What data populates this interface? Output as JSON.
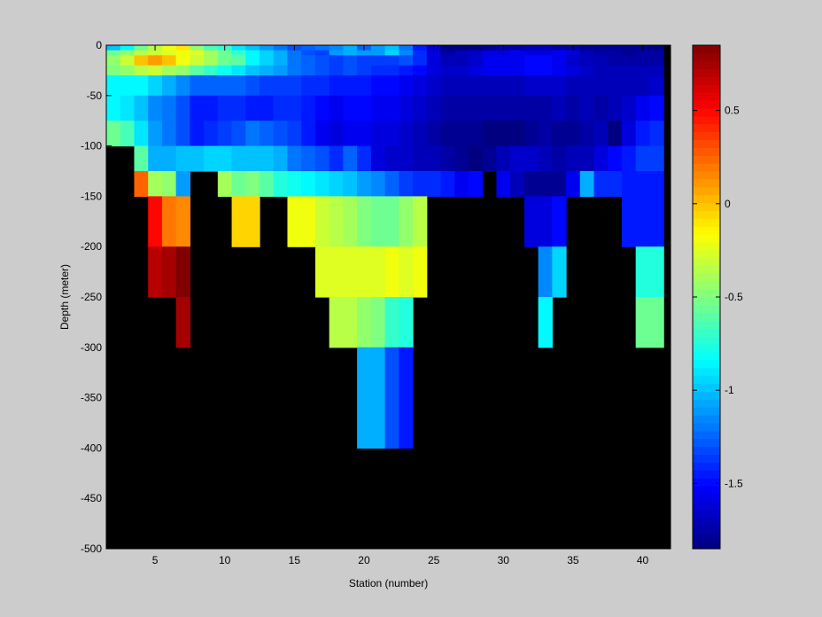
{
  "chart_data": {
    "type": "heatmap",
    "title": "",
    "xlabel": "Station (number)",
    "ylabel": "Depth (meter)",
    "xlim": [
      1.5,
      42
    ],
    "ylim": [
      -500,
      0
    ],
    "xticks": [
      5,
      10,
      15,
      20,
      25,
      30,
      35,
      40
    ],
    "yticks": [
      0,
      -50,
      -100,
      -150,
      -200,
      -250,
      -300,
      -350,
      -400,
      -450,
      -500
    ],
    "colorbar": {
      "colormap": "jet",
      "clim": [
        -1.85,
        0.85
      ],
      "ticks": [
        0.5,
        0,
        -0.5,
        -1,
        -1.5
      ]
    },
    "background_color": "#000000",
    "stations": [
      2,
      3,
      4,
      5,
      6,
      7,
      8,
      9,
      10,
      11,
      12,
      13,
      14,
      15,
      16,
      17,
      18,
      19,
      20,
      21,
      22,
      23,
      24,
      25,
      26,
      27,
      28,
      29,
      30,
      31,
      32,
      33,
      34,
      35,
      36,
      37,
      38,
      39,
      40,
      41
    ],
    "depth_boundaries": [
      -5,
      -10,
      -20,
      -30,
      -50,
      -75,
      -100,
      -125,
      -150,
      -200,
      -250,
      -300,
      -400,
      -500
    ],
    "values": [
      [
        -1.0,
        -0.85,
        -0.55,
        -0.35,
        -0.2,
        -0.1,
        -0.45,
        -0.65,
        -0.7,
        -0.9,
        -1.0,
        -1.1,
        -1.2,
        -1.3,
        -1.25,
        -1.2,
        -1.15,
        -1.05,
        -1.25,
        -1.1,
        -1.0,
        -1.2,
        -1.45,
        -1.65,
        -1.85,
        -1.85,
        -1.85,
        -1.8,
        -1.75,
        -1.75,
        -1.7,
        -1.7,
        -1.75,
        -1.75,
        -1.8,
        -1.8,
        -1.8,
        -1.8,
        -1.8,
        -1.85
      ],
      [
        -0.55,
        -0.45,
        -0.35,
        -0.3,
        -0.25,
        -0.2,
        -0.25,
        -0.4,
        -0.55,
        -0.7,
        -0.85,
        -0.95,
        -1.05,
        -1.2,
        -1.3,
        -1.35,
        -1.1,
        -1.05,
        -1.1,
        -1.1,
        -0.95,
        -1.15,
        -1.4,
        -1.6,
        -1.75,
        -1.7,
        -1.65,
        -1.6,
        -1.6,
        -1.55,
        -1.6,
        -1.6,
        -1.55,
        -1.6,
        -1.7,
        -1.75,
        -1.75,
        -1.8,
        -1.75,
        -1.75
      ],
      [
        -0.45,
        -0.3,
        0.0,
        0.1,
        0.0,
        -0.2,
        -0.3,
        -0.4,
        -0.55,
        -0.6,
        -0.85,
        -0.95,
        -1.05,
        -1.2,
        -1.25,
        -1.3,
        -1.35,
        -1.3,
        -1.35,
        -1.35,
        -1.35,
        -1.3,
        -1.4,
        -1.6,
        -1.7,
        -1.7,
        -1.65,
        -1.55,
        -1.55,
        -1.55,
        -1.5,
        -1.5,
        -1.55,
        -1.65,
        -1.7,
        -1.7,
        -1.75,
        -1.75,
        -1.75,
        -1.75
      ],
      [
        -0.5,
        -0.45,
        -0.35,
        -0.3,
        -0.4,
        -0.45,
        -0.6,
        -0.7,
        -0.8,
        -0.9,
        -1.0,
        -1.05,
        -1.1,
        -1.2,
        -1.25,
        -1.3,
        -1.35,
        -1.3,
        -1.35,
        -1.4,
        -1.4,
        -1.45,
        -1.5,
        -1.6,
        -1.65,
        -1.65,
        -1.6,
        -1.55,
        -1.55,
        -1.55,
        -1.5,
        -1.5,
        -1.55,
        -1.6,
        -1.65,
        -1.7,
        -1.7,
        -1.7,
        -1.7,
        -1.7
      ],
      [
        -0.85,
        -0.85,
        -0.85,
        -0.95,
        -1.05,
        -1.15,
        -1.25,
        -1.25,
        -1.25,
        -1.25,
        -1.3,
        -1.35,
        -1.35,
        -1.35,
        -1.4,
        -1.4,
        -1.45,
        -1.45,
        -1.45,
        -1.5,
        -1.5,
        -1.55,
        -1.6,
        -1.65,
        -1.7,
        -1.7,
        -1.7,
        -1.7,
        -1.7,
        -1.7,
        -1.65,
        -1.65,
        -1.65,
        -1.7,
        -1.7,
        -1.7,
        -1.7,
        -1.7,
        -1.7,
        -1.65
      ],
      [
        -0.85,
        -0.9,
        -1.0,
        -1.15,
        -1.2,
        -1.3,
        -1.45,
        -1.45,
        -1.4,
        -1.4,
        -1.45,
        -1.45,
        -1.4,
        -1.4,
        -1.45,
        -1.5,
        -1.55,
        -1.5,
        -1.5,
        -1.55,
        -1.55,
        -1.6,
        -1.65,
        -1.7,
        -1.75,
        -1.75,
        -1.75,
        -1.75,
        -1.75,
        -1.75,
        -1.75,
        -1.75,
        -1.7,
        -1.75,
        -1.7,
        -1.75,
        -1.7,
        -1.65,
        -1.55,
        -1.5
      ],
      [
        -0.55,
        -0.65,
        -0.9,
        -1.1,
        -1.2,
        -1.3,
        -1.45,
        -1.4,
        -1.35,
        -1.3,
        -1.2,
        -1.25,
        -1.3,
        -1.35,
        -1.45,
        -1.55,
        -1.6,
        -1.55,
        -1.55,
        -1.6,
        -1.6,
        -1.65,
        -1.7,
        -1.75,
        -1.8,
        -1.8,
        -1.8,
        -1.85,
        -1.85,
        -1.85,
        -1.8,
        -1.75,
        -1.8,
        -1.8,
        -1.75,
        -1.7,
        -1.85,
        -1.6,
        -1.45,
        -1.4
      ],
      [
        null,
        null,
        -0.6,
        -1.05,
        -1.05,
        -1.0,
        -1.0,
        -0.95,
        -0.95,
        -1.0,
        -1.0,
        -1.0,
        -1.05,
        -1.2,
        -1.25,
        -1.3,
        -1.4,
        -1.25,
        -1.4,
        -1.6,
        -1.65,
        -1.65,
        -1.7,
        -1.7,
        -1.75,
        -1.8,
        -1.85,
        -1.8,
        -1.7,
        -1.65,
        -1.65,
        -1.7,
        -1.75,
        -1.7,
        -1.7,
        -1.6,
        -1.5,
        -1.45,
        -1.35,
        -1.35
      ],
      [
        null,
        null,
        0.25,
        -0.4,
        -0.45,
        -1.1,
        null,
        null,
        -0.4,
        -0.55,
        -0.5,
        -0.6,
        -0.75,
        -0.8,
        -0.85,
        -0.9,
        -0.95,
        -1.0,
        -1.1,
        -1.15,
        -1.25,
        -1.35,
        -1.4,
        -1.4,
        -1.45,
        -1.55,
        -1.5,
        null,
        -1.55,
        -1.7,
        -1.8,
        -1.8,
        -1.8,
        -1.55,
        -1.05,
        -1.4,
        -1.4,
        -1.45,
        -1.45,
        -1.45
      ],
      [
        null,
        null,
        null,
        0.5,
        0.2,
        0.15,
        null,
        null,
        null,
        -0.05,
        -0.05,
        null,
        null,
        -0.2,
        -0.2,
        -0.3,
        -0.35,
        -0.4,
        -0.5,
        -0.55,
        -0.55,
        -0.45,
        -0.35,
        null,
        null,
        null,
        null,
        null,
        null,
        null,
        -1.6,
        -1.6,
        -1.5,
        null,
        null,
        null,
        null,
        -1.45,
        -1.45,
        -1.45
      ],
      [
        null,
        null,
        null,
        0.7,
        0.75,
        0.85,
        null,
        null,
        null,
        null,
        null,
        null,
        null,
        null,
        null,
        -0.25,
        -0.25,
        -0.25,
        -0.25,
        -0.25,
        -0.2,
        -0.25,
        -0.2,
        null,
        null,
        null,
        null,
        null,
        null,
        null,
        null,
        -1.15,
        -0.95,
        null,
        null,
        null,
        null,
        null,
        -0.75,
        -0.75
      ],
      [
        null,
        null,
        null,
        null,
        null,
        0.75,
        null,
        null,
        null,
        null,
        null,
        null,
        null,
        null,
        null,
        null,
        -0.35,
        -0.35,
        -0.45,
        -0.5,
        -0.7,
        -0.75,
        null,
        null,
        null,
        null,
        null,
        null,
        null,
        null,
        null,
        -0.85,
        null,
        null,
        null,
        null,
        null,
        null,
        -0.55,
        -0.55
      ],
      [
        null,
        null,
        null,
        null,
        null,
        null,
        null,
        null,
        null,
        null,
        null,
        null,
        null,
        null,
        null,
        null,
        null,
        null,
        -1.05,
        -1.05,
        -1.3,
        -1.45,
        null,
        null,
        null,
        null,
        null,
        null,
        null,
        null,
        null,
        null,
        null,
        null,
        null,
        null,
        null,
        null,
        null,
        null
      ]
    ]
  }
}
